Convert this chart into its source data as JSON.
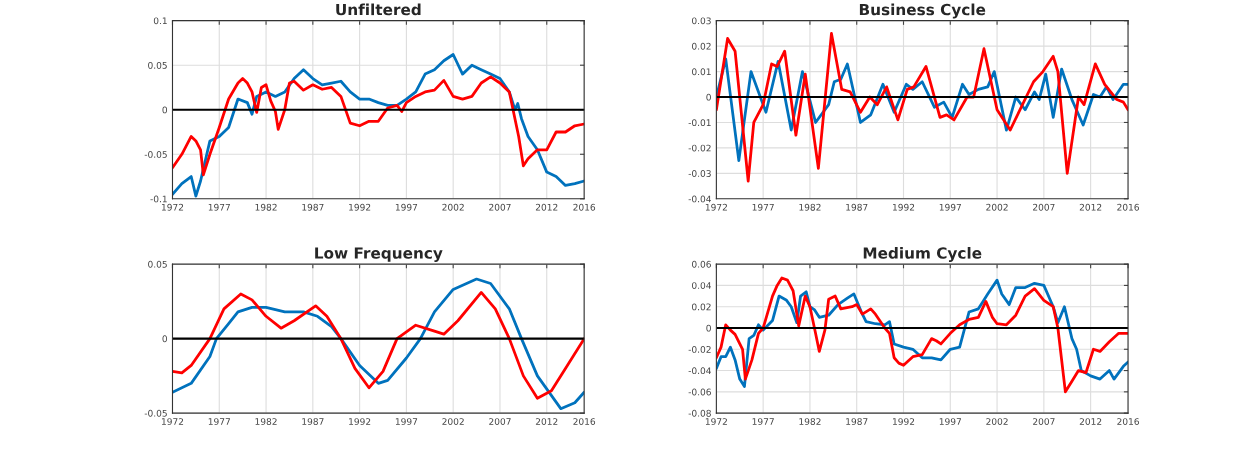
{
  "chart_data": [
    {
      "type": "line",
      "title": "Unfiltered",
      "xlim": [
        1972,
        2016
      ],
      "xticks": [
        1972,
        1977,
        1982,
        1987,
        1992,
        1997,
        2002,
        2007,
        2012,
        2016
      ],
      "ylim": [
        -0.1,
        0.1
      ],
      "yticks": [
        -0.1,
        -0.05,
        0,
        0.05,
        0.1
      ],
      "grid": true,
      "line_style": "solid",
      "ref_lines": [
        {
          "axis": "y",
          "value": 0,
          "color": "#000000"
        }
      ],
      "series": [
        {
          "color": "#0072bd",
          "x": [
            1972,
            1973,
            1974,
            1974.5,
            1975,
            1976,
            1977,
            1978,
            1979,
            1980,
            1980.5,
            1981,
            1982,
            1983,
            1984,
            1985,
            1986,
            1987,
            1988,
            1989,
            1990,
            1991,
            1992,
            1993,
            1994,
            1995,
            1996,
            1997,
            1998,
            1999,
            2000,
            2001,
            2002,
            2003,
            2004,
            2005,
            2006,
            2007,
            2008,
            2008.6,
            2008.9,
            2009.3,
            2010,
            2011,
            2012,
            2013,
            2014,
            2015,
            2016
          ],
          "values": [
            -0.095,
            -0.083,
            -0.075,
            -0.097,
            -0.08,
            -0.035,
            -0.03,
            -0.02,
            0.012,
            0.008,
            -0.005,
            0.015,
            0.02,
            0.015,
            0.02,
            0.035,
            0.045,
            0.035,
            0.028,
            0.03,
            0.032,
            0.02,
            0.012,
            0.012,
            0.008,
            0.005,
            0.005,
            0.012,
            0.02,
            0.04,
            0.045,
            0.055,
            0.062,
            0.04,
            0.05,
            0.045,
            0.04,
            0.035,
            0.02,
            0.0,
            0.007,
            -0.01,
            -0.03,
            -0.045,
            -0.07,
            -0.075,
            -0.085,
            -0.083,
            -0.08
          ]
        },
        {
          "color": "#ff0000",
          "x": [
            1972,
            1973,
            1974,
            1974.5,
            1975,
            1975.3,
            1976,
            1977,
            1978,
            1979,
            1979.5,
            1980,
            1980.5,
            1981,
            1981.5,
            1982,
            1982.5,
            1983,
            1983.3,
            1984,
            1984.5,
            1985,
            1986,
            1987,
            1988,
            1989,
            1990,
            1991,
            1992,
            1993,
            1994,
            1995,
            1996,
            1996.5,
            1997,
            1998,
            1999,
            2000,
            2001,
            2002,
            2003,
            2004,
            2005,
            2006,
            2007,
            2008,
            2009,
            2009.5,
            2010,
            2011,
            2012,
            2013,
            2014,
            2015,
            2016
          ],
          "values": [
            -0.065,
            -0.05,
            -0.03,
            -0.035,
            -0.045,
            -0.073,
            -0.05,
            -0.02,
            0.012,
            0.03,
            0.035,
            0.03,
            0.02,
            -0.003,
            0.025,
            0.028,
            0.01,
            -0.002,
            -0.022,
            0.0,
            0.03,
            0.032,
            0.022,
            0.028,
            0.023,
            0.025,
            0.015,
            -0.015,
            -0.018,
            -0.013,
            -0.013,
            0.002,
            0.005,
            -0.002,
            0.008,
            0.015,
            0.02,
            0.022,
            0.033,
            0.015,
            0.012,
            0.015,
            0.03,
            0.037,
            0.03,
            0.02,
            -0.03,
            -0.063,
            -0.055,
            -0.045,
            -0.045,
            -0.025,
            -0.025,
            -0.018,
            -0.016
          ]
        }
      ]
    },
    {
      "type": "line",
      "title": "Business Cycle",
      "xlim": [
        1972,
        2016
      ],
      "xticks": [
        1972,
        1977,
        1982,
        1987,
        1992,
        1997,
        2002,
        2007,
        2012,
        2016
      ],
      "ylim": [
        -0.04,
        0.03
      ],
      "yticks": [
        -0.04,
        -0.03,
        -0.02,
        -0.01,
        0,
        0.01,
        0.02,
        0.03
      ],
      "grid": true,
      "line_style": "solid",
      "ref_lines": [
        {
          "axis": "y",
          "value": 0,
          "color": "#000000"
        }
      ],
      "series": [
        {
          "color": "#0072bd",
          "x": [
            1972,
            1973,
            1974.4,
            1975.7,
            1977.3,
            1978.6,
            1980,
            1981.2,
            1982.6,
            1984,
            1984.6,
            1985.3,
            1986,
            1987.4,
            1988.5,
            1989.8,
            1991,
            1992.3,
            1993,
            1994,
            1995.3,
            1996.3,
            1997.2,
            1998.3,
            1999,
            2000,
            2001,
            2001.7,
            2003,
            2004,
            2005,
            2006,
            2006.5,
            2007.2,
            2008,
            2008.9,
            2010,
            2011.2,
            2012.3,
            2013,
            2013.7,
            2014.4,
            2015.5,
            2016
          ],
          "values": [
            0.0,
            0.015,
            -0.025,
            0.01,
            -0.006,
            0.014,
            -0.013,
            0.01,
            -0.01,
            -0.003,
            0.006,
            0.007,
            0.013,
            -0.01,
            -0.007,
            0.005,
            -0.006,
            0.005,
            0.003,
            0.006,
            -0.004,
            -0.002,
            -0.008,
            0.005,
            0.001,
            0.003,
            0.004,
            0.01,
            -0.013,
            0.0,
            -0.005,
            0.002,
            -0.001,
            0.009,
            -0.008,
            0.011,
            -0.001,
            -0.011,
            0.001,
            0.0,
            0.004,
            -0.001,
            0.005,
            0.005
          ]
        },
        {
          "color": "#ff0000",
          "x": [
            1972,
            1973.2,
            1974,
            1975.4,
            1976,
            1977,
            1977.9,
            1978.5,
            1979.3,
            1980.5,
            1981.5,
            1982.9,
            1984.3,
            1985.4,
            1986.3,
            1987.4,
            1988.4,
            1989.2,
            1990.2,
            1991.4,
            1992.4,
            1993.1,
            1994.4,
            1995.9,
            1996.6,
            1997.4,
            1998.8,
            1999.5,
            2000.6,
            2002,
            2003.4,
            2005.9,
            2006.9,
            2008,
            2008.5,
            2009.5,
            2010.7,
            2011.3,
            2012.5,
            2013.5,
            2014.8,
            2015.5,
            2016
          ],
          "values": [
            -0.005,
            0.023,
            0.018,
            -0.033,
            -0.01,
            -0.003,
            0.013,
            0.012,
            0.018,
            -0.015,
            0.009,
            -0.028,
            0.025,
            0.003,
            0.002,
            -0.006,
            0.0,
            -0.003,
            0.004,
            -0.009,
            0.003,
            0.004,
            0.012,
            -0.008,
            -0.007,
            -0.009,
            0.0,
            0.0,
            0.019,
            -0.005,
            -0.013,
            0.006,
            0.01,
            0.016,
            0.01,
            -0.03,
            0.0,
            -0.003,
            0.013,
            0.005,
            -0.001,
            -0.002,
            -0.005
          ]
        }
      ]
    },
    {
      "type": "line",
      "title": "Low Frequency",
      "xlim": [
        1972,
        2016
      ],
      "xticks": [
        1972,
        1977,
        1982,
        1987,
        1992,
        1997,
        2002,
        2007,
        2012,
        2016
      ],
      "ylim": [
        -0.05,
        0.05
      ],
      "yticks": [
        -0.05,
        0,
        0.05
      ],
      "grid": true,
      "line_style": "solid",
      "ref_lines": [
        {
          "axis": "y",
          "value": 0,
          "color": "#000000"
        }
      ],
      "series": [
        {
          "color": "#0072bd",
          "x": [
            1972,
            1974,
            1976,
            1976.7,
            1978,
            1979,
            1980.5,
            1982,
            1984,
            1986,
            1987.5,
            1989,
            1990,
            1992,
            1994,
            1995,
            1997,
            1998.5,
            2000,
            2002,
            2004.5,
            2006,
            2008,
            2009.3,
            2011,
            2013.5,
            2015,
            2016
          ],
          "values": [
            -0.036,
            -0.03,
            -0.012,
            0.0,
            0.01,
            0.018,
            0.021,
            0.021,
            0.018,
            0.018,
            0.015,
            0.008,
            0.0,
            -0.018,
            -0.03,
            -0.028,
            -0.013,
            0.0,
            0.018,
            0.033,
            0.04,
            0.037,
            0.02,
            0.0,
            -0.025,
            -0.047,
            -0.043,
            -0.036
          ]
        },
        {
          "color": "#ff0000",
          "x": [
            1972,
            1973,
            1974,
            1976,
            1977.5,
            1979.3,
            1980.5,
            1982,
            1983.6,
            1985,
            1987.3,
            1988.5,
            1990,
            1991.5,
            1993,
            1994.5,
            1996,
            1998,
            2000,
            2001,
            2002.5,
            2005,
            2006.5,
            2008,
            2009.5,
            2011,
            2012.5,
            2014,
            2016
          ],
          "values": [
            -0.022,
            -0.023,
            -0.018,
            0.0,
            0.02,
            0.03,
            0.026,
            0.015,
            0.007,
            0.012,
            0.022,
            0.015,
            0.0,
            -0.02,
            -0.033,
            -0.022,
            0.0,
            0.009,
            0.005,
            0.003,
            0.012,
            0.031,
            0.02,
            0.0,
            -0.025,
            -0.04,
            -0.035,
            -0.02,
            0.0
          ]
        }
      ]
    },
    {
      "type": "line",
      "title": "Medium Cycle",
      "xlim": [
        1972,
        2016
      ],
      "xticks": [
        1972,
        1977,
        1982,
        1987,
        1992,
        1997,
        2002,
        2007,
        2012,
        2016
      ],
      "ylim": [
        -0.08,
        0.06
      ],
      "yticks": [
        -0.08,
        -0.06,
        -0.04,
        -0.02,
        0,
        0.02,
        0.04,
        0.06
      ],
      "grid": true,
      "line_style": "solid",
      "ref_lines": [
        {
          "axis": "y",
          "value": 0,
          "color": "#000000"
        }
      ],
      "series": [
        {
          "color": "#0072bd",
          "x": [
            1972,
            1972.5,
            1973,
            1973.5,
            1974,
            1974.5,
            1975,
            1975.5,
            1976,
            1976.5,
            1977,
            1978,
            1978.7,
            1979.5,
            1980,
            1980.6,
            1981,
            1981.6,
            1982,
            1982.5,
            1983,
            1984,
            1985,
            1986,
            1986.7,
            1987.5,
            1988,
            1989,
            1990,
            1990.5,
            1991,
            1992,
            1993,
            1994,
            1995,
            1996,
            1997,
            1998,
            1998.7,
            1999,
            2000,
            2000.5,
            2001,
            2002,
            2002.5,
            2003.3,
            2004,
            2005,
            2006,
            2007,
            2008,
            2008.5,
            2009.2,
            2010,
            2010.5,
            2011,
            2012,
            2013,
            2014,
            2014.5,
            2015.5,
            2016
          ],
          "values": [
            -0.038,
            -0.027,
            -0.027,
            -0.018,
            -0.03,
            -0.048,
            -0.055,
            -0.01,
            -0.007,
            0.003,
            -0.002,
            0.007,
            0.03,
            0.026,
            0.02,
            0.005,
            0.03,
            0.034,
            0.02,
            0.017,
            0.01,
            0.012,
            0.022,
            0.028,
            0.032,
            0.015,
            0.006,
            0.004,
            0.003,
            0.006,
            -0.015,
            -0.018,
            -0.02,
            -0.028,
            -0.028,
            -0.03,
            -0.02,
            -0.018,
            0.005,
            0.015,
            0.018,
            0.025,
            0.032,
            0.045,
            0.032,
            0.022,
            0.038,
            0.038,
            0.042,
            0.04,
            0.02,
            0.005,
            0.02,
            -0.01,
            -0.02,
            -0.04,
            -0.045,
            -0.048,
            -0.04,
            -0.048,
            -0.036,
            -0.032
          ]
        },
        {
          "color": "#ff0000",
          "x": [
            1972,
            1972.5,
            1973,
            1973.5,
            1974,
            1974.8,
            1975.1,
            1975.8,
            1976.5,
            1977,
            1977.5,
            1978,
            1978.5,
            1979,
            1979.6,
            1980.2,
            1980.8,
            1981.5,
            1982,
            1982.6,
            1983,
            1983.6,
            1984,
            1984.7,
            1985.3,
            1986.5,
            1987,
            1987.6,
            1988.5,
            1989,
            1990,
            1990.5,
            1991,
            1991.5,
            1992,
            1993,
            1994,
            1995,
            1995.5,
            1996,
            1997,
            1998,
            1999,
            2000,
            2000.8,
            2001.5,
            2002,
            2003,
            2004,
            2005,
            2006,
            2007,
            2008,
            2008.5,
            2009.3,
            2010,
            2010.7,
            2011.5,
            2012.3,
            2013,
            2014,
            2015,
            2016
          ],
          "values": [
            -0.028,
            -0.018,
            0.003,
            -0.002,
            -0.006,
            -0.02,
            -0.048,
            -0.03,
            -0.005,
            0.0,
            0.015,
            0.03,
            0.04,
            0.047,
            0.045,
            0.035,
            0.002,
            0.03,
            0.02,
            -0.005,
            -0.022,
            -0.002,
            0.027,
            0.03,
            0.018,
            0.02,
            0.022,
            0.013,
            0.018,
            0.013,
            0.0,
            -0.005,
            -0.028,
            -0.033,
            -0.035,
            -0.027,
            -0.025,
            -0.01,
            -0.012,
            -0.015,
            -0.005,
            0.003,
            0.008,
            0.01,
            0.025,
            0.01,
            0.004,
            0.003,
            0.012,
            0.03,
            0.037,
            0.026,
            0.02,
            0.0,
            -0.06,
            -0.05,
            -0.04,
            -0.042,
            -0.02,
            -0.022,
            -0.013,
            -0.005,
            -0.005
          ]
        }
      ]
    }
  ]
}
